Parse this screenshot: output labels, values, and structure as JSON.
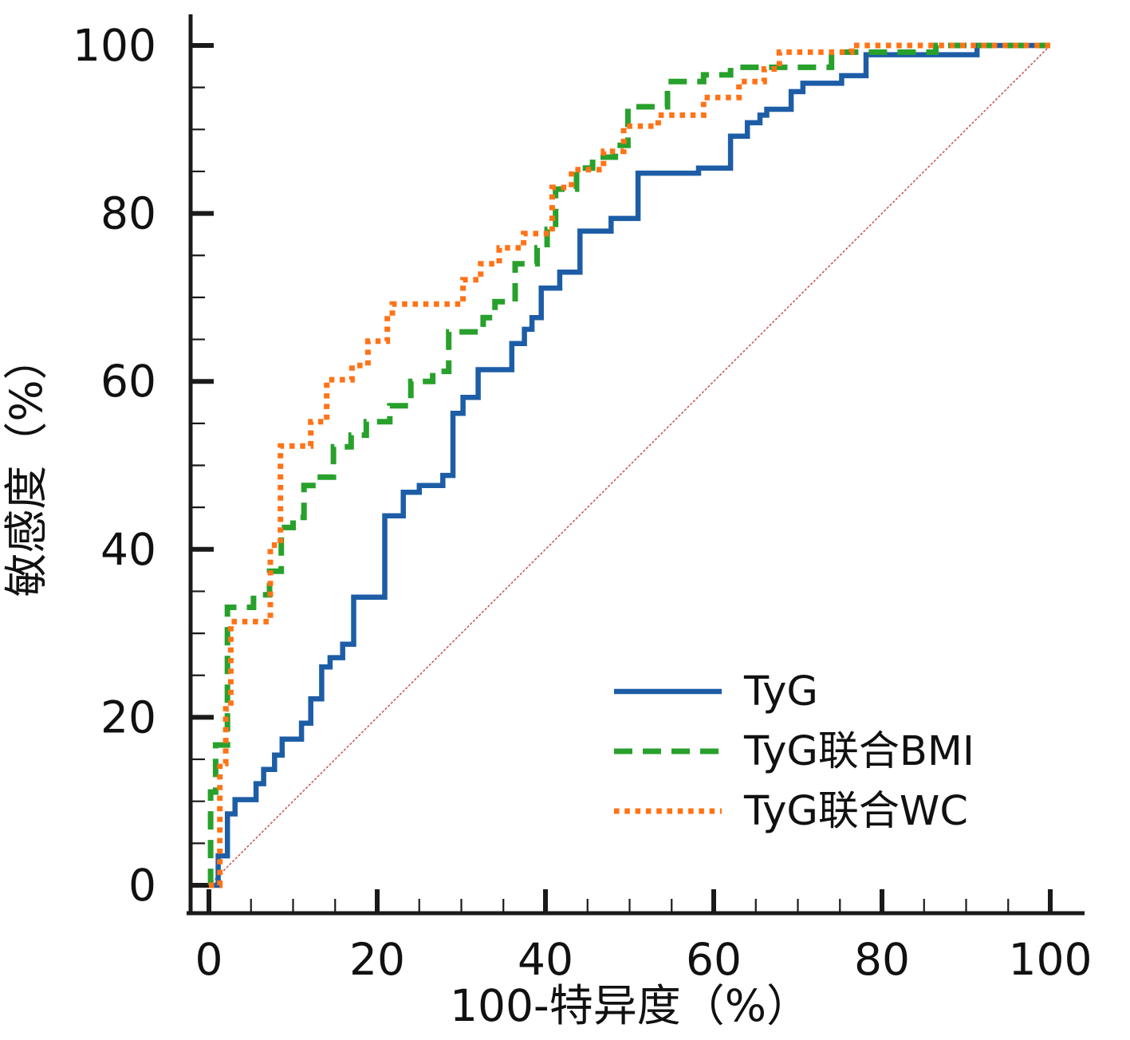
{
  "axes": {
    "x": {
      "label": "100-特异度（%）",
      "range": [
        0,
        100
      ],
      "major_ticks": [
        0,
        20,
        40,
        60,
        80,
        100
      ],
      "minor_step": 5
    },
    "y": {
      "label": "敏感度（%）",
      "range": [
        0,
        100
      ],
      "major_ticks": [
        0,
        20,
        40,
        60,
        80,
        100
      ],
      "minor_step": 5
    }
  },
  "colors": {
    "tyg": "#1d5da6",
    "tyg_bmi": "#27a12b",
    "tyg_wc": "#ff7317",
    "reference": "#c65a52",
    "axis": "#1a1a1a"
  },
  "legend": {
    "items": [
      {
        "label": "TyG",
        "series": "tyg",
        "style": "solid"
      },
      {
        "label": "TyG联合BMI",
        "series": "tyg_bmi",
        "style": "dashed"
      },
      {
        "label": "TyG联合WC",
        "series": "tyg_wc",
        "style": "dotted"
      }
    ]
  },
  "chart_data": {
    "type": "line",
    "subtype": "roc-step-curves",
    "title": "",
    "xlabel": "100-特异度（%）",
    "ylabel": "敏感度（%）",
    "xlim": [
      0,
      100
    ],
    "ylim": [
      0,
      100
    ],
    "grid": false,
    "legend_position": "lower-right-inside",
    "reference_line": {
      "from": [
        0,
        0
      ],
      "to": [
        100,
        100
      ]
    },
    "series": [
      {
        "name": "TyG",
        "key": "tyg",
        "style": "solid",
        "points": [
          [
            0,
            0
          ],
          [
            1.1,
            0
          ],
          [
            1.1,
            3.5
          ],
          [
            2.2,
            3.5
          ],
          [
            2.2,
            8.5
          ],
          [
            3.1,
            8.5
          ],
          [
            3.1,
            10.2
          ],
          [
            5.6,
            10.2
          ],
          [
            5.6,
            12.1
          ],
          [
            6.5,
            12.1
          ],
          [
            6.5,
            13.8
          ],
          [
            7.8,
            13.8
          ],
          [
            7.8,
            15.5
          ],
          [
            8.7,
            15.5
          ],
          [
            8.7,
            17.4
          ],
          [
            11,
            17.4
          ],
          [
            11,
            19.3
          ],
          [
            12.1,
            19.3
          ],
          [
            12.1,
            22.2
          ],
          [
            13.4,
            22.2
          ],
          [
            13.4,
            26
          ],
          [
            14.4,
            26
          ],
          [
            14.4,
            27.1
          ],
          [
            15.9,
            27.1
          ],
          [
            15.9,
            28.7
          ],
          [
            17.2,
            28.7
          ],
          [
            17.2,
            34.3
          ],
          [
            20.9,
            34.3
          ],
          [
            20.9,
            44
          ],
          [
            23.1,
            44
          ],
          [
            23.1,
            46.8
          ],
          [
            25,
            46.8
          ],
          [
            25,
            47.6
          ],
          [
            27.8,
            47.6
          ],
          [
            27.8,
            48.8
          ],
          [
            29,
            48.8
          ],
          [
            29,
            56.2
          ],
          [
            30.2,
            56.2
          ],
          [
            30.2,
            58.1
          ],
          [
            32,
            58.1
          ],
          [
            32,
            61.4
          ],
          [
            36,
            61.4
          ],
          [
            36,
            64.5
          ],
          [
            37.5,
            64.5
          ],
          [
            37.5,
            66.2
          ],
          [
            38.4,
            66.2
          ],
          [
            38.4,
            67.6
          ],
          [
            39.5,
            67.6
          ],
          [
            39.5,
            71.1
          ],
          [
            41.7,
            71.1
          ],
          [
            41.7,
            73
          ],
          [
            44.1,
            73
          ],
          [
            44.1,
            77.9
          ],
          [
            47.8,
            77.9
          ],
          [
            47.8,
            79.4
          ],
          [
            51,
            79.4
          ],
          [
            51,
            84.8
          ],
          [
            58.2,
            84.8
          ],
          [
            58.2,
            85.4
          ],
          [
            62,
            85.4
          ],
          [
            62,
            89.2
          ],
          [
            64,
            89.2
          ],
          [
            64,
            90.8
          ],
          [
            65.5,
            90.8
          ],
          [
            65.5,
            91.7
          ],
          [
            66.3,
            91.7
          ],
          [
            66.3,
            92.4
          ],
          [
            69.2,
            92.4
          ],
          [
            69.2,
            94.5
          ],
          [
            70.6,
            94.5
          ],
          [
            70.6,
            95.5
          ],
          [
            75.2,
            95.5
          ],
          [
            75.2,
            96.4
          ],
          [
            78.1,
            96.4
          ],
          [
            78.1,
            98.9
          ],
          [
            91.3,
            98.9
          ],
          [
            91.3,
            100
          ],
          [
            100,
            100
          ]
        ]
      },
      {
        "name": "TyG联合BMI",
        "key": "tyg_bmi",
        "style": "dashed",
        "points": [
          [
            0,
            0
          ],
          [
            0.2,
            0
          ],
          [
            0.2,
            11.1
          ],
          [
            0.8,
            11.1
          ],
          [
            0.8,
            16.7
          ],
          [
            2.2,
            16.7
          ],
          [
            2.2,
            33.1
          ],
          [
            5.3,
            33.1
          ],
          [
            5.3,
            34.6
          ],
          [
            7.2,
            34.6
          ],
          [
            7.2,
            37.4
          ],
          [
            8.6,
            37.4
          ],
          [
            8.6,
            42.6
          ],
          [
            10,
            42.6
          ],
          [
            10,
            43.8
          ],
          [
            11.3,
            43.8
          ],
          [
            11.3,
            47.6
          ],
          [
            12.7,
            47.6
          ],
          [
            12.7,
            48.6
          ],
          [
            14.8,
            48.6
          ],
          [
            14.8,
            52.2
          ],
          [
            16.9,
            52.2
          ],
          [
            16.9,
            53.6
          ],
          [
            18.7,
            53.6
          ],
          [
            18.7,
            55.2
          ],
          [
            21.5,
            55.2
          ],
          [
            21.5,
            57.1
          ],
          [
            24,
            57.1
          ],
          [
            24,
            60
          ],
          [
            26.6,
            60
          ],
          [
            26.6,
            61.2
          ],
          [
            28.5,
            61.2
          ],
          [
            28.5,
            65.9
          ],
          [
            32.6,
            65.9
          ],
          [
            32.6,
            67.6
          ],
          [
            34,
            67.6
          ],
          [
            34,
            69.5
          ],
          [
            36.4,
            69.5
          ],
          [
            36.4,
            74
          ],
          [
            39,
            74
          ],
          [
            39,
            75.9
          ],
          [
            40.2,
            75.9
          ],
          [
            40.2,
            78.1
          ],
          [
            41.2,
            78.1
          ],
          [
            41.2,
            82.9
          ],
          [
            43.7,
            82.9
          ],
          [
            43.7,
            85.4
          ],
          [
            45.6,
            85.4
          ],
          [
            45.6,
            86.7
          ],
          [
            48.3,
            86.7
          ],
          [
            48.3,
            88.1
          ],
          [
            49.8,
            88.1
          ],
          [
            49.8,
            92.7
          ],
          [
            54.5,
            92.7
          ],
          [
            54.5,
            95.7
          ],
          [
            58.8,
            95.7
          ],
          [
            58.8,
            96.5
          ],
          [
            62,
            96.5
          ],
          [
            62,
            97.4
          ],
          [
            74,
            97.4
          ],
          [
            74,
            99.2
          ],
          [
            86.4,
            99.2
          ],
          [
            86.4,
            100
          ],
          [
            100,
            100
          ]
        ]
      },
      {
        "name": "TyG联合WC",
        "key": "tyg_wc",
        "style": "dotted",
        "points": [
          [
            0,
            0
          ],
          [
            1.3,
            0
          ],
          [
            1.3,
            14.5
          ],
          [
            2,
            14.5
          ],
          [
            2,
            21
          ],
          [
            2.6,
            21
          ],
          [
            2.6,
            31.4
          ],
          [
            7.3,
            31.4
          ],
          [
            7.3,
            40.5
          ],
          [
            8.5,
            40.5
          ],
          [
            8.5,
            52.3
          ],
          [
            12.1,
            52.3
          ],
          [
            12.1,
            55.2
          ],
          [
            14,
            55.2
          ],
          [
            14,
            60.2
          ],
          [
            17,
            60.2
          ],
          [
            17,
            61.9
          ],
          [
            18.9,
            61.9
          ],
          [
            18.9,
            64.8
          ],
          [
            21.2,
            64.8
          ],
          [
            21.2,
            67.8
          ],
          [
            21.8,
            67.8
          ],
          [
            21.8,
            69.2
          ],
          [
            30.2,
            69.2
          ],
          [
            30.2,
            72.1
          ],
          [
            32.3,
            72.1
          ],
          [
            32.3,
            74
          ],
          [
            34.5,
            74
          ],
          [
            34.5,
            75.9
          ],
          [
            37.4,
            75.9
          ],
          [
            37.4,
            77.6
          ],
          [
            40.8,
            77.6
          ],
          [
            40.8,
            83.1
          ],
          [
            43.1,
            83.1
          ],
          [
            43.1,
            85.2
          ],
          [
            46.9,
            85.2
          ],
          [
            46.9,
            87.4
          ],
          [
            49.3,
            87.4
          ],
          [
            49.3,
            90.4
          ],
          [
            53.4,
            90.4
          ],
          [
            53.4,
            91.7
          ],
          [
            58.8,
            91.7
          ],
          [
            58.8,
            93.8
          ],
          [
            63,
            93.8
          ],
          [
            63,
            95.7
          ],
          [
            66,
            95.7
          ],
          [
            66,
            97.2
          ],
          [
            67.8,
            97.2
          ],
          [
            67.8,
            99.2
          ],
          [
            76.4,
            99.2
          ],
          [
            76.4,
            100
          ],
          [
            100,
            100
          ]
        ]
      }
    ]
  }
}
